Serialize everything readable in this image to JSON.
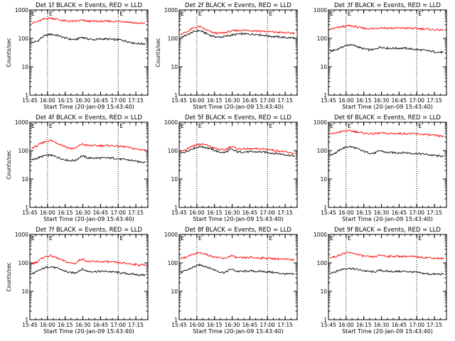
{
  "chart_data": [
    {
      "type": "line",
      "title": "Det 1f BLACK = Events, RED = LLD",
      "ylabel": "Counts/sec",
      "xlabel": "Start Time (20-Jan-09 15:43:40)",
      "x_ticks": [
        "15:45",
        "16:00",
        "16:15",
        "16:30",
        "16:45",
        "17:00",
        "17:15"
      ],
      "y_ticks": [
        "1",
        "10",
        "100",
        "1000"
      ],
      "ylim": [
        1,
        1000
      ],
      "y_scale": "log",
      "markers": [
        "16:00",
        "17:00"
      ],
      "marker_labels": [
        "E",
        "E"
      ],
      "series": [
        {
          "color": "#000000",
          "values": [
            70,
            80,
            120,
            140,
            130,
            110,
            95,
            90,
            110,
            95,
            90,
            95,
            95,
            90,
            90,
            80,
            70,
            65,
            65
          ]
        },
        {
          "color": "#ff0000",
          "values": [
            350,
            380,
            480,
            520,
            480,
            420,
            400,
            400,
            430,
            400,
            400,
            400,
            400,
            400,
            400,
            390,
            360,
            340,
            340
          ]
        }
      ]
    },
    {
      "type": "line",
      "title": "Det 2f BLACK = Events, RED = LLD",
      "ylabel": "Counts/sec",
      "xlabel": "Start Time (20-Jan-09 15:43:40)",
      "x_ticks": [
        "15:45",
        "16:00",
        "16:15",
        "16:30",
        "16:45",
        "17:00",
        "17:15"
      ],
      "y_ticks": [
        "1",
        "10",
        "100",
        "1000"
      ],
      "ylim": [
        1,
        1000
      ],
      "y_scale": "log",
      "markers": [
        "16:00",
        "17:00"
      ],
      "marker_labels": [
        "E",
        "E"
      ],
      "series": [
        {
          "color": "#000000",
          "values": [
            110,
            130,
            170,
            190,
            150,
            120,
            110,
            115,
            130,
            140,
            145,
            140,
            140,
            130,
            120,
            115,
            110,
            105,
            105
          ]
        },
        {
          "color": "#ff0000",
          "values": [
            140,
            170,
            230,
            260,
            200,
            160,
            150,
            160,
            180,
            190,
            195,
            190,
            185,
            180,
            170,
            165,
            160,
            155,
            155
          ]
        }
      ]
    },
    {
      "type": "line",
      "title": "Det 3f BLACK = Events, RED = LLD",
      "ylabel": "",
      "xlabel": "Start Time (20-Jan-09 15:43:40)",
      "x_ticks": [
        "15:45",
        "16:00",
        "16:15",
        "16:30",
        "16:45",
        "17:00",
        "17:15"
      ],
      "y_ticks": [
        "1",
        "10",
        "100",
        "1000"
      ],
      "ylim": [
        1,
        1000
      ],
      "y_scale": "log",
      "markers": [
        "16:00",
        "17:00"
      ],
      "marker_labels": [
        "E",
        "E"
      ],
      "series": [
        {
          "color": "#000000",
          "values": [
            35,
            40,
            50,
            60,
            55,
            45,
            40,
            40,
            50,
            45,
            45,
            45,
            45,
            42,
            40,
            38,
            35,
            33,
            32
          ]
        },
        {
          "color": "#ff0000",
          "values": [
            210,
            230,
            260,
            280,
            260,
            230,
            220,
            220,
            240,
            230,
            230,
            230,
            230,
            225,
            220,
            215,
            205,
            200,
            195
          ]
        }
      ]
    },
    {
      "type": "line",
      "title": "Det 4f BLACK = Events, RED = LLD",
      "ylabel": "Counts/sec",
      "xlabel": "Start Time (20-Jan-09 15:43:40)",
      "x_ticks": [
        "15:45",
        "16:00",
        "16:15",
        "16:30",
        "16:45",
        "17:00",
        "17:15"
      ],
      "y_ticks": [
        "1",
        "10",
        "100",
        "1000"
      ],
      "ylim": [
        1,
        1000
      ],
      "y_scale": "log",
      "markers": [
        "16:00",
        "17:00"
      ],
      "marker_labels": [
        "E",
        "E"
      ],
      "series": [
        {
          "color": "#000000",
          "values": [
            45,
            55,
            65,
            70,
            60,
            50,
            45,
            45,
            65,
            55,
            55,
            55,
            55,
            55,
            50,
            48,
            45,
            40,
            40
          ]
        },
        {
          "color": "#ff0000",
          "values": [
            120,
            150,
            200,
            230,
            190,
            150,
            120,
            120,
            170,
            150,
            150,
            150,
            150,
            150,
            140,
            135,
            120,
            110,
            105
          ]
        }
      ]
    },
    {
      "type": "line",
      "title": "Det 5f BLACK = Events, RED = LLD",
      "ylabel": "",
      "xlabel": "Start Time (20-Jan-09 15:43:40)",
      "x_ticks": [
        "15:45",
        "16:00",
        "16:15",
        "16:30",
        "16:45",
        "17:00",
        "17:15"
      ],
      "y_ticks": [
        "1",
        "10",
        "100",
        "1000"
      ],
      "ylim": [
        1,
        1000
      ],
      "y_scale": "log",
      "markers": [
        "16:00",
        "17:00"
      ],
      "marker_labels": [
        "E",
        "E"
      ],
      "series": [
        {
          "color": "#000000",
          "values": [
            80,
            95,
            120,
            140,
            130,
            110,
            90,
            85,
            110,
            90,
            90,
            90,
            90,
            90,
            85,
            80,
            75,
            70,
            65
          ]
        },
        {
          "color": "#ff0000",
          "values": [
            95,
            115,
            150,
            170,
            160,
            130,
            110,
            105,
            140,
            115,
            115,
            115,
            115,
            115,
            110,
            100,
            95,
            85,
            80
          ]
        }
      ]
    },
    {
      "type": "line",
      "title": "Det 6f BLACK = Events, RED = LLD",
      "ylabel": "",
      "xlabel": "Start Time (20-Jan-09 15:43:40)",
      "x_ticks": [
        "15:45",
        "16:00",
        "16:15",
        "16:30",
        "16:45",
        "17:00",
        "17:15"
      ],
      "y_ticks": [
        "1",
        "10",
        "100",
        "1000"
      ],
      "ylim": [
        1,
        1000
      ],
      "y_scale": "log",
      "markers": [
        "16:00",
        "17:00"
      ],
      "marker_labels": [
        "E",
        "E"
      ],
      "series": [
        {
          "color": "#000000",
          "values": [
            70,
            85,
            120,
            140,
            125,
            100,
            85,
            80,
            100,
            85,
            85,
            85,
            85,
            80,
            78,
            75,
            70,
            65,
            65
          ]
        },
        {
          "color": "#ff0000",
          "values": [
            380,
            420,
            480,
            500,
            470,
            420,
            400,
            390,
            420,
            400,
            400,
            400,
            400,
            390,
            380,
            370,
            350,
            330,
            320
          ]
        }
      ]
    },
    {
      "type": "line",
      "title": "Det 7f BLACK = Events, RED = LLD",
      "ylabel": "Counts/sec",
      "xlabel": "Start Time (20-Jan-09 15:43:40)",
      "x_ticks": [
        "15:45",
        "16:00",
        "16:15",
        "16:30",
        "16:45",
        "17:00",
        "17:15"
      ],
      "y_ticks": [
        "1",
        "10",
        "100",
        "1000"
      ],
      "ylim": [
        1,
        1000
      ],
      "y_scale": "log",
      "markers": [
        "16:00",
        "17:00"
      ],
      "marker_labels": [
        "E",
        "E"
      ],
      "series": [
        {
          "color": "#000000",
          "values": [
            40,
            50,
            65,
            75,
            65,
            55,
            45,
            45,
            60,
            50,
            50,
            50,
            50,
            48,
            45,
            42,
            40,
            38,
            37
          ]
        },
        {
          "color": "#ff0000",
          "values": [
            90,
            110,
            160,
            180,
            150,
            120,
            100,
            95,
            140,
            110,
            110,
            110,
            110,
            105,
            100,
            95,
            90,
            85,
            85
          ]
        }
      ]
    },
    {
      "type": "line",
      "title": "Det 8f BLACK = Events, RED = LLD",
      "ylabel": "",
      "xlabel": "Start Time (20-Jan-09 15:43:40)",
      "x_ticks": [
        "15:45",
        "16:00",
        "16:15",
        "16:30",
        "16:45",
        "17:00",
        "17:15"
      ],
      "y_ticks": [
        "1",
        "10",
        "100",
        "1000"
      ],
      "ylim": [
        1,
        1000
      ],
      "y_scale": "log",
      "markers": [
        "16:00",
        "17:00"
      ],
      "marker_labels": [
        "E",
        "E"
      ],
      "series": [
        {
          "color": "#000000",
          "values": [
            45,
            55,
            70,
            85,
            75,
            60,
            50,
            45,
            60,
            50,
            50,
            52,
            50,
            50,
            48,
            45,
            42,
            40,
            40
          ]
        },
        {
          "color": "#ff0000",
          "values": [
            140,
            160,
            200,
            230,
            200,
            170,
            150,
            140,
            180,
            150,
            150,
            155,
            150,
            150,
            145,
            140,
            135,
            130,
            130
          ]
        }
      ]
    },
    {
      "type": "line",
      "title": "Det 9f BLACK = Events, RED = LLD",
      "ylabel": "",
      "xlabel": "Start Time (20-Jan-09 15:43:40)",
      "x_ticks": [
        "15:45",
        "16:00",
        "16:15",
        "16:30",
        "16:45",
        "17:00",
        "17:15"
      ],
      "y_ticks": [
        "1",
        "10",
        "100",
        "1000"
      ],
      "ylim": [
        1,
        1000
      ],
      "y_scale": "log",
      "markers": [
        "16:00",
        "17:00"
      ],
      "marker_labels": [
        "E",
        "E"
      ],
      "series": [
        {
          "color": "#000000",
          "values": [
            45,
            50,
            60,
            65,
            60,
            55,
            50,
            48,
            55,
            50,
            50,
            50,
            50,
            48,
            45,
            42,
            40,
            40,
            40
          ]
        },
        {
          "color": "#ff0000",
          "values": [
            150,
            170,
            210,
            230,
            210,
            180,
            165,
            160,
            190,
            170,
            170,
            170,
            170,
            165,
            160,
            155,
            150,
            145,
            140
          ]
        }
      ]
    }
  ]
}
